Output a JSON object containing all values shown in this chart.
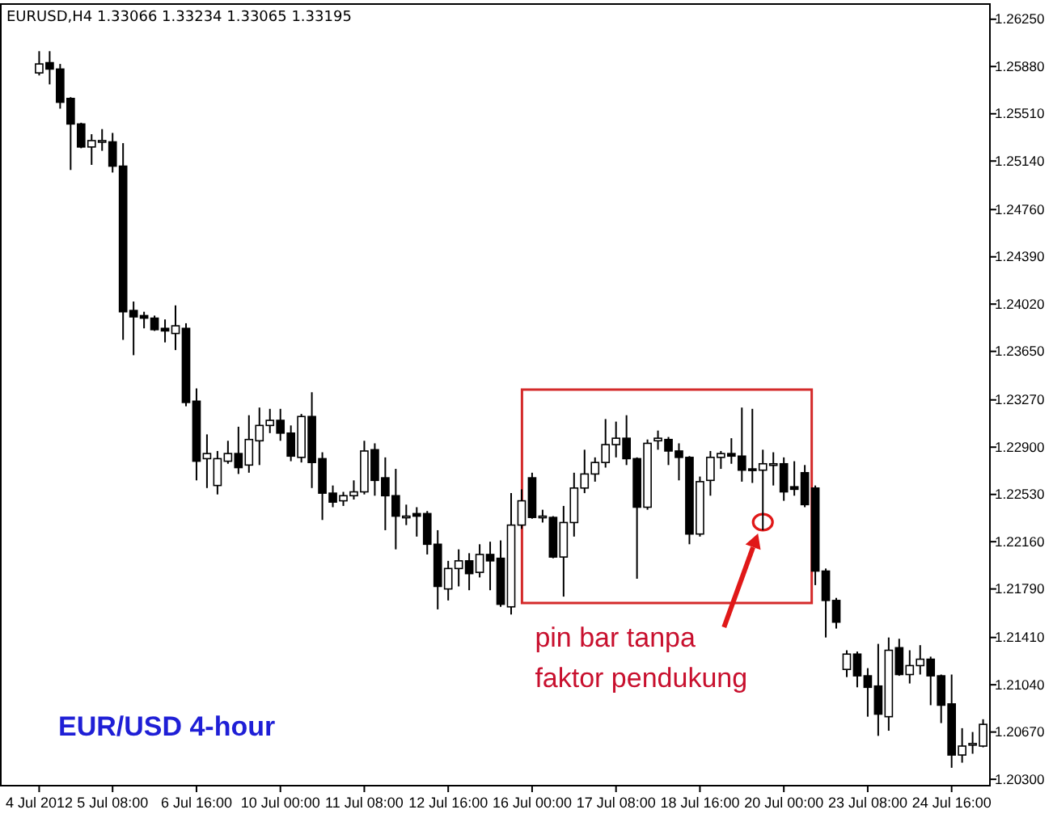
{
  "chart_data": {
    "type": "candlestick",
    "title": "EURUSD,H4  1.33066 1.33234 1.33065 1.33195",
    "annotations": [
      "EUR/USD  4-hour",
      "pin bar tanpa faktor pendukung"
    ],
    "categories": [
      "4 Jul 2012",
      null,
      null,
      null,
      null,
      null,
      null,
      "5 Jul 08:00",
      null,
      null,
      null,
      null,
      null,
      null,
      null,
      "6 Jul 16:00",
      null,
      null,
      null,
      null,
      null,
      null,
      null,
      "10 Jul 00:00",
      null,
      null,
      null,
      null,
      null,
      null,
      null,
      "11 Jul 08:00",
      null,
      null,
      null,
      null,
      null,
      null,
      null,
      "12 Jul 16:00",
      null,
      null,
      null,
      null,
      null,
      null,
      null,
      "16 Jul 00:00",
      null,
      null,
      null,
      null,
      null,
      null,
      null,
      "17 Jul 08:00",
      null,
      null,
      null,
      null,
      null,
      null,
      null,
      "18 Jul 16:00",
      null,
      null,
      null,
      null,
      null,
      null,
      null,
      "20 Jul 00:00",
      null,
      null,
      null,
      null,
      null,
      null,
      null,
      "23 Jul 08:00",
      null,
      null,
      null,
      null,
      null,
      null,
      null,
      "24 Jul 16:00",
      null,
      null,
      null
    ],
    "ohlc": [
      [
        1.2583,
        1.26,
        1.2581,
        1.259
      ],
      [
        1.2591,
        1.26,
        1.2574,
        1.2586
      ],
      [
        1.2586,
        1.259,
        1.2555,
        1.256
      ],
      [
        1.2563,
        1.2564,
        1.2507,
        1.2543
      ],
      [
        1.2543,
        1.2544,
        1.2524,
        1.2525
      ],
      [
        1.2525,
        1.2535,
        1.2511,
        1.253
      ],
      [
        1.253,
        1.2539,
        1.2522,
        1.253
      ],
      [
        1.2529,
        1.2536,
        1.2505,
        1.251
      ],
      [
        1.251,
        1.2528,
        1.2374,
        1.2396
      ],
      [
        1.2397,
        1.2404,
        1.2362,
        1.2392
      ],
      [
        1.2393,
        1.2396,
        1.2383,
        1.2391
      ],
      [
        1.2391,
        1.2393,
        1.2381,
        1.2382
      ],
      [
        1.2383,
        1.239,
        1.2372,
        1.2381
      ],
      [
        1.2379,
        1.2401,
        1.2366,
        1.2385
      ],
      [
        1.2383,
        1.2387,
        1.2322,
        1.2325
      ],
      [
        1.2326,
        1.2336,
        1.2264,
        1.2279
      ],
      [
        1.2281,
        1.23,
        1.2258,
        1.2285
      ],
      [
        1.226,
        1.2287,
        1.2253,
        1.2281
      ],
      [
        1.2279,
        1.2295,
        1.2277,
        1.2285
      ],
      [
        1.2285,
        1.2306,
        1.2269,
        1.2274
      ],
      [
        1.2276,
        1.2315,
        1.227,
        1.2296
      ],
      [
        1.2295,
        1.2321,
        1.2276,
        1.2307
      ],
      [
        1.2307,
        1.232,
        1.2301,
        1.2311
      ],
      [
        1.2311,
        1.232,
        1.2295,
        1.2301
      ],
      [
        1.2301,
        1.2307,
        1.2279,
        1.2283
      ],
      [
        1.2282,
        1.2316,
        1.2278,
        1.2314
      ],
      [
        1.2314,
        1.2333,
        1.2258,
        1.2278
      ],
      [
        1.2281,
        1.2286,
        1.2233,
        1.2254
      ],
      [
        1.2254,
        1.226,
        1.2243,
        1.2247
      ],
      [
        1.2248,
        1.2255,
        1.2244,
        1.2252
      ],
      [
        1.2252,
        1.2264,
        1.2249,
        1.2255
      ],
      [
        1.2255,
        1.2295,
        1.2253,
        1.2287
      ],
      [
        1.2288,
        1.2293,
        1.2252,
        1.2264
      ],
      [
        1.2266,
        1.2282,
        1.2225,
        1.2252
      ],
      [
        1.2252,
        1.2273,
        1.221,
        1.2236
      ],
      [
        1.2236,
        1.2245,
        1.2229,
        1.2236
      ],
      [
        1.2238,
        1.2243,
        1.222,
        1.2236
      ],
      [
        1.2238,
        1.224,
        1.2206,
        1.2214
      ],
      [
        1.2214,
        1.2225,
        1.2163,
        1.2181
      ],
      [
        1.2179,
        1.2201,
        1.217,
        1.2195
      ],
      [
        1.2195,
        1.221,
        1.2181,
        1.2201
      ],
      [
        1.2201,
        1.2207,
        1.2178,
        1.2191
      ],
      [
        1.2192,
        1.2214,
        1.2188,
        1.2206
      ],
      [
        1.2206,
        1.2216,
        1.2178,
        1.2201
      ],
      [
        1.2203,
        1.2217,
        1.2165,
        1.2167
      ],
      [
        1.2165,
        1.2254,
        1.2159,
        1.2229
      ],
      [
        1.2229,
        1.2257,
        1.2226,
        1.2248
      ],
      [
        1.2266,
        1.227,
        1.2234,
        1.2235
      ],
      [
        1.2236,
        1.2241,
        1.2231,
        1.2236
      ],
      [
        1.2235,
        1.2236,
        1.2203,
        1.2204
      ],
      [
        1.2204,
        1.2244,
        1.2173,
        1.2231
      ],
      [
        1.2231,
        1.227,
        1.222,
        1.2258
      ],
      [
        1.2258,
        1.2288,
        1.2254,
        1.2269
      ],
      [
        1.2269,
        1.2282,
        1.2263,
        1.2278
      ],
      [
        1.2278,
        1.2312,
        1.2274,
        1.2292
      ],
      [
        1.2292,
        1.231,
        1.2282,
        1.2297
      ],
      [
        1.2297,
        1.2315,
        1.2276,
        1.2281
      ],
      [
        1.2281,
        1.2282,
        1.2187,
        1.2243
      ],
      [
        1.2243,
        1.2296,
        1.2241,
        1.2293
      ],
      [
        1.2295,
        1.2303,
        1.2288,
        1.2297
      ],
      [
        1.2296,
        1.2298,
        1.2276,
        1.2287
      ],
      [
        1.2287,
        1.2293,
        1.2264,
        1.2282
      ],
      [
        1.2282,
        1.2283,
        1.2214,
        1.2222
      ],
      [
        1.2222,
        1.2267,
        1.222,
        1.2263
      ],
      [
        1.2264,
        1.2287,
        1.2252,
        1.2282
      ],
      [
        1.2282,
        1.2287,
        1.2273,
        1.2285
      ],
      [
        1.2285,
        1.2297,
        1.2277,
        1.2283
      ],
      [
        1.2283,
        1.2321,
        1.2263,
        1.2272
      ],
      [
        1.2273,
        1.232,
        1.2262,
        1.2272
      ],
      [
        1.2272,
        1.2288,
        1.2225,
        1.2277
      ],
      [
        1.2277,
        1.2286,
        1.226,
        1.2277
      ],
      [
        1.2277,
        1.2282,
        1.2248,
        1.2255
      ],
      [
        1.2259,
        1.2279,
        1.2252,
        1.2257
      ],
      [
        1.227,
        1.2276,
        1.2243,
        1.2245
      ],
      [
        1.2258,
        1.226,
        1.2182,
        1.2193
      ],
      [
        1.2193,
        1.2195,
        1.2141,
        1.217
      ],
      [
        1.217,
        1.2172,
        1.2148,
        1.2153
      ],
      [
        1.2116,
        1.2131,
        1.211,
        1.2128
      ],
      [
        1.2128,
        1.213,
        1.2102,
        1.2111
      ],
      [
        1.2111,
        1.2117,
        1.2079,
        1.2102
      ],
      [
        1.2103,
        1.2136,
        1.2064,
        1.2081
      ],
      [
        1.2079,
        1.2141,
        1.2068,
        1.2131
      ],
      [
        1.2133,
        1.214,
        1.2111,
        1.2112
      ],
      [
        1.2112,
        1.2131,
        1.2105,
        1.2119
      ],
      [
        1.2119,
        1.2135,
        1.2112,
        1.2124
      ],
      [
        1.2124,
        1.2126,
        1.2088,
        1.2111
      ],
      [
        1.2111,
        1.2112,
        1.2074,
        1.2088
      ],
      [
        1.2089,
        1.2112,
        1.2039,
        1.2049
      ],
      [
        1.2049,
        1.207,
        1.2043,
        1.2056
      ],
      [
        1.2058,
        1.2067,
        1.205,
        1.2058
      ],
      [
        1.2056,
        1.2077,
        1.2055,
        1.2073
      ]
    ],
    "ylim": [
      1.2025,
      1.2635
    ],
    "yticks": [
      {
        "value": 1.2625,
        "label": "1.26250"
      },
      {
        "value": 1.2588,
        "label": "1.25880"
      },
      {
        "value": 1.2551,
        "label": "1.25510"
      },
      {
        "value": 1.2514,
        "label": "1.25140"
      },
      {
        "value": 1.2476,
        "label": "1.24760"
      },
      {
        "value": 1.2439,
        "label": "1.24390"
      },
      {
        "value": 1.2402,
        "label": "1.24020"
      },
      {
        "value": 1.2365,
        "label": "1.23650"
      },
      {
        "value": 1.2327,
        "label": "1.23270"
      },
      {
        "value": 1.229,
        "label": "1.22900"
      },
      {
        "value": 1.2253,
        "label": "1.22530"
      },
      {
        "value": 1.2216,
        "label": "1.22160"
      },
      {
        "value": 1.2179,
        "label": "1.21790"
      },
      {
        "value": 1.2141,
        "label": "1.21410"
      },
      {
        "value": 1.2104,
        "label": "1.21040"
      },
      {
        "value": 1.2067,
        "label": "1.20670"
      },
      {
        "value": 1.203,
        "label": "1.20300"
      }
    ]
  }
}
